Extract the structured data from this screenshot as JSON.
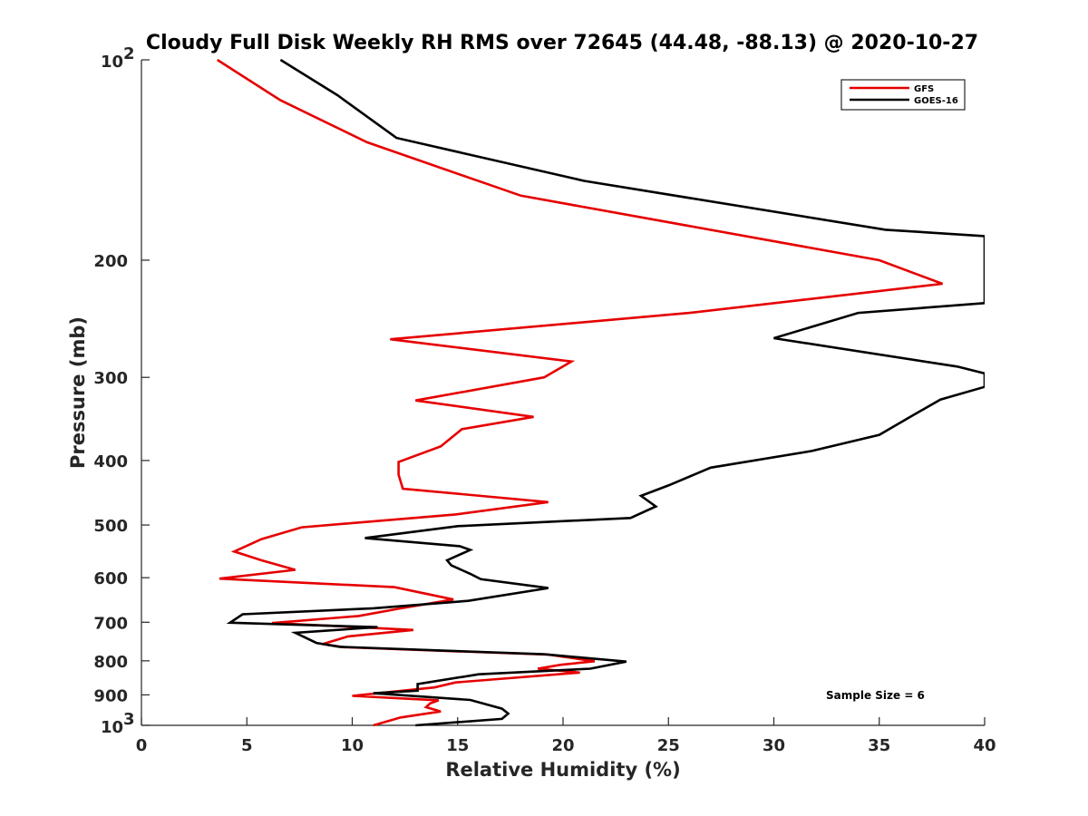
{
  "chart_data": {
    "type": "line",
    "title": "Cloudy Full Disk Weekly RH RMS over 72645 (44.48, -88.13) @ 2020-10-27",
    "xlabel": "Relative Humidity (%)",
    "ylabel": "Pressure (mb)",
    "xlim": [
      0,
      40
    ],
    "ylim": [
      100,
      1000
    ],
    "y_scale": "log",
    "y_reversed": true,
    "x_ticks": [
      "0",
      "5",
      "10",
      "15",
      "20",
      "25",
      "30",
      "35",
      "40"
    ],
    "y_ticks": [
      {
        "value": 100,
        "label": "10",
        "sup": "2"
      },
      {
        "value": 200,
        "label": "200",
        "sup": ""
      },
      {
        "value": 300,
        "label": "300",
        "sup": ""
      },
      {
        "value": 400,
        "label": "400",
        "sup": ""
      },
      {
        "value": 500,
        "label": "500",
        "sup": ""
      },
      {
        "value": 600,
        "label": "600",
        "sup": ""
      },
      {
        "value": 700,
        "label": "700",
        "sup": ""
      },
      {
        "value": 800,
        "label": "800",
        "sup": ""
      },
      {
        "value": 900,
        "label": "900",
        "sup": ""
      },
      {
        "value": 1000,
        "label": "10",
        "sup": "3"
      }
    ],
    "grid": false,
    "legend_position": "top-right",
    "annotation": "Sample Size = 6",
    "series": [
      {
        "name": "GFS",
        "color": "#e60000",
        "points": [
          [
            3.6,
            100
          ],
          [
            6.6,
            115
          ],
          [
            10.7,
            133
          ],
          [
            18,
            160
          ],
          [
            35,
            200
          ],
          [
            38,
            217
          ],
          [
            26,
            240
          ],
          [
            11.8,
            263
          ],
          [
            20.4,
            284
          ],
          [
            19.1,
            300
          ],
          [
            13,
            325
          ],
          [
            18.6,
            344
          ],
          [
            15.2,
            359
          ],
          [
            14.2,
            381
          ],
          [
            12.2,
            402
          ],
          [
            12.2,
            420
          ],
          [
            12.4,
            441
          ],
          [
            19.3,
            462
          ],
          [
            14.9,
            482
          ],
          [
            7.6,
            504
          ],
          [
            5.7,
            525
          ],
          [
            4.4,
            548
          ],
          [
            5.7,
            565
          ],
          [
            7.3,
            584
          ],
          [
            3.7,
            602
          ],
          [
            12,
            620
          ],
          [
            14.8,
            647
          ],
          [
            12.2,
            668
          ],
          [
            10.3,
            685
          ],
          [
            6.2,
            702
          ],
          [
            9.9,
            711
          ],
          [
            12.9,
            719
          ],
          [
            9.8,
            735
          ],
          [
            8.6,
            755
          ],
          [
            9.6,
            763
          ],
          [
            19.3,
            783
          ],
          [
            21.5,
            801
          ],
          [
            19.9,
            811
          ],
          [
            18.8,
            822
          ],
          [
            20.8,
            833
          ],
          [
            14.9,
            862
          ],
          [
            13.9,
            877
          ],
          [
            10,
            903
          ],
          [
            14.1,
            917
          ],
          [
            13.7,
            927
          ],
          [
            13.5,
            939
          ],
          [
            14.2,
            953
          ],
          [
            12.3,
            973
          ],
          [
            11,
            1000
          ]
        ]
      },
      {
        "name": "GOES-16",
        "color": "#000000",
        "points": [
          [
            6.6,
            100
          ],
          [
            9.3,
            113
          ],
          [
            12.1,
            131
          ],
          [
            21,
            152
          ],
          [
            35.3,
            180
          ],
          [
            40,
            184
          ],
          [
            40,
            232
          ],
          [
            34,
            240
          ],
          [
            30,
            262
          ],
          [
            38.7,
            289
          ],
          [
            40,
            296
          ],
          [
            40,
            310
          ],
          [
            37.9,
            324
          ],
          [
            36.6,
            342
          ],
          [
            35,
            366
          ],
          [
            31.8,
            387
          ],
          [
            27,
            410
          ],
          [
            25,
            436
          ],
          [
            23.7,
            452
          ],
          [
            24.4,
            469
          ],
          [
            23.2,
            488
          ],
          [
            15,
            502
          ],
          [
            10.6,
            523
          ],
          [
            15.1,
            538
          ],
          [
            15.6,
            545
          ],
          [
            14.5,
            565
          ],
          [
            14.7,
            575
          ],
          [
            15.6,
            592
          ],
          [
            16.1,
            603
          ],
          [
            19.3,
            622
          ],
          [
            15.5,
            650
          ],
          [
            11,
            667
          ],
          [
            4.8,
            681
          ],
          [
            4.2,
            701
          ],
          [
            11.2,
            712
          ],
          [
            7.3,
            726
          ],
          [
            8.3,
            752
          ],
          [
            9.4,
            762
          ],
          [
            19.1,
            782
          ],
          [
            23,
            802
          ],
          [
            21.3,
            822
          ],
          [
            16,
            838
          ],
          [
            13.1,
            867
          ],
          [
            13.1,
            887
          ],
          [
            11,
            895
          ],
          [
            15.6,
            916
          ],
          [
            17.1,
            944
          ],
          [
            17.4,
            960
          ],
          [
            17.1,
            978
          ],
          [
            13,
            1000
          ]
        ]
      }
    ]
  }
}
